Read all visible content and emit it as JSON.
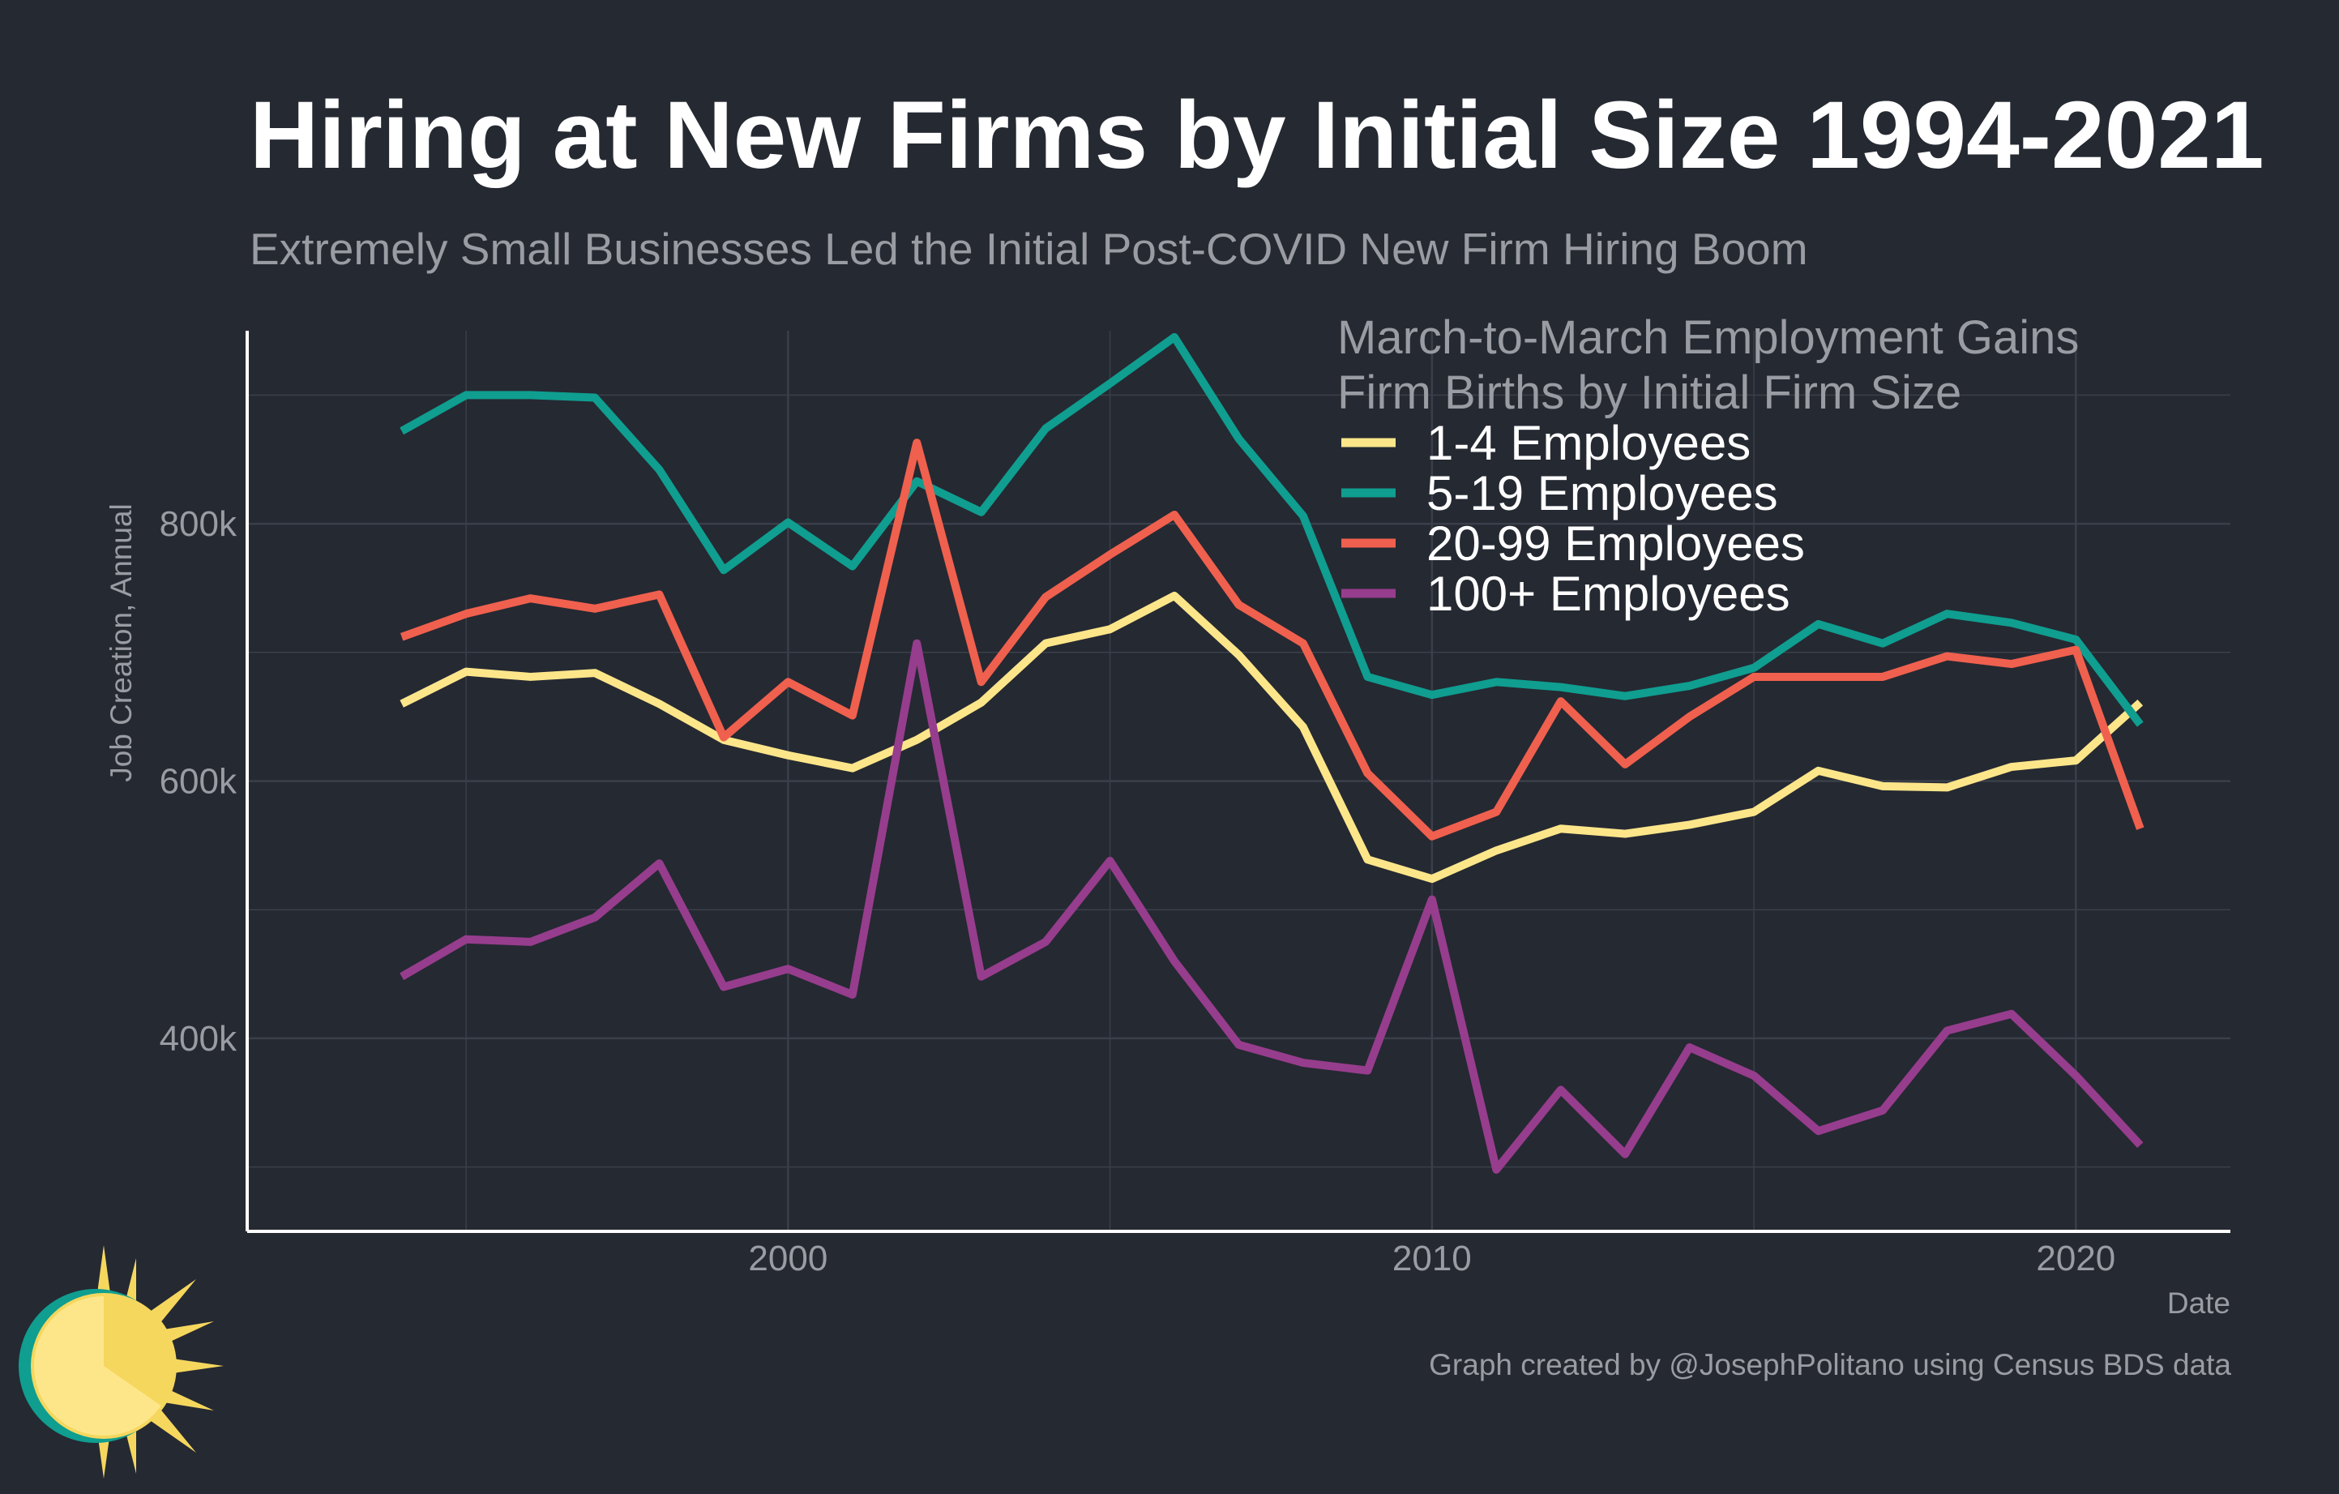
{
  "header": {
    "title": "Hiring at New Firms by Initial Size 1994-2021",
    "subtitle": "Extremely Small Businesses Led the Initial Post-COVID New Firm Hiring Boom"
  },
  "footer": {
    "caption": "Graph created by @JosephPolitano using Census BDS data"
  },
  "logo": {
    "icon": "sun-logo-icon"
  },
  "colors": {
    "background": "#252932",
    "grid": "#3a3f49",
    "axis": "#ffffff",
    "text_muted": "#9a9ca3"
  },
  "chart_data": {
    "type": "line",
    "title": "Hiring at New Firms by Initial Size 1994-2021",
    "subtitle": "Extremely Small Businesses Led the Initial Post-COVID New Firm Hiring Boom",
    "xlabel": "Date",
    "ylabel": "Job Creation, Annual",
    "xlim": [
      1991.6,
      2022.4
    ],
    "ylim": [
      250000,
      950000
    ],
    "x_ticks": [
      2000,
      2010,
      2020
    ],
    "x_tick_labels": [
      "2000",
      "2010",
      "2020"
    ],
    "y_ticks": [
      400000,
      600000,
      800000
    ],
    "y_tick_labels": [
      "400k",
      "600k",
      "800k"
    ],
    "grid": true,
    "legend": {
      "position": "top-right",
      "title_lines": [
        "March-to-March Employment Gains",
        "Firm Births by Initial Firm Size"
      ]
    },
    "x": [
      1994,
      1995,
      1996,
      1997,
      1998,
      1999,
      2000,
      2001,
      2002,
      2003,
      2004,
      2005,
      2006,
      2007,
      2008,
      2009,
      2010,
      2011,
      2012,
      2013,
      2014,
      2015,
      2016,
      2017,
      2018,
      2019,
      2020,
      2021
    ],
    "series": [
      {
        "name": "1-4 Employees",
        "color": "#fde68a",
        "values": [
          660000,
          685000,
          681000,
          684000,
          660000,
          632000,
          620000,
          610000,
          632000,
          661000,
          707000,
          718000,
          744000,
          698000,
          642000,
          539000,
          524000,
          546000,
          563000,
          559000,
          566000,
          576000,
          608000,
          596000,
          595000,
          611000,
          616000,
          661000
        ]
      },
      {
        "name": "5-19 Employees",
        "color": "#0f9e90",
        "values": [
          872000,
          900000,
          900000,
          898000,
          842000,
          764000,
          801000,
          767000,
          833000,
          809000,
          874000,
          909000,
          945000,
          866000,
          806000,
          681000,
          667000,
          677000,
          673000,
          666000,
          674000,
          688000,
          722000,
          707000,
          730000,
          723000,
          710000,
          644000
        ]
      },
      {
        "name": "20-99 Employees",
        "color": "#f0604e",
        "values": [
          712000,
          730000,
          742000,
          734000,
          745000,
          634000,
          677000,
          651000,
          863000,
          677000,
          743000,
          776000,
          807000,
          737000,
          707000,
          606000,
          557000,
          576000,
          662000,
          613000,
          650000,
          681000,
          681000,
          681000,
          697000,
          691000,
          702000,
          563000
        ]
      },
      {
        "name": "100+ Employees",
        "color": "#973d8d",
        "values": [
          448000,
          477000,
          475000,
          494000,
          536000,
          440000,
          454000,
          434000,
          707000,
          448000,
          475000,
          538000,
          460000,
          395000,
          381000,
          375000,
          508000,
          298000,
          360000,
          310000,
          393000,
          371000,
          328000,
          344000,
          406000,
          419000,
          371000,
          317000
        ]
      }
    ]
  }
}
